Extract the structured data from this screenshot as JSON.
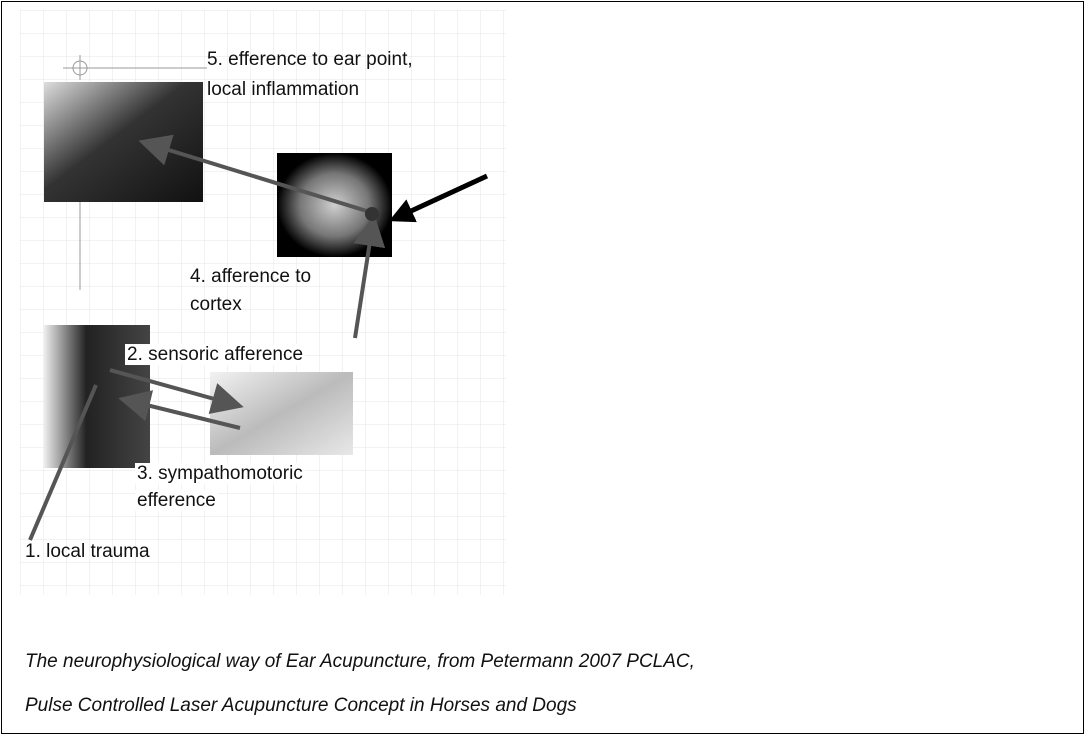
{
  "labels": [
    {
      "lines": [
        "5. efference to ear point,",
        "local inflammation"
      ]
    },
    {
      "lines": [
        "4. afference to",
        "cortex"
      ]
    },
    {
      "lines": [
        "2. sensoric afference"
      ]
    },
    {
      "lines": [
        "3. sympathomotoric",
        "efference"
      ]
    },
    {
      "lines": [
        "1. local trauma"
      ]
    }
  ],
  "caption": {
    "lines": [
      "The neurophysiological way of Ear Acupuncture, from Petermann 2007 PCLAC,",
      "Pulse Controlled Laser Acupuncture Concept in Horses and Dogs"
    ]
  }
}
